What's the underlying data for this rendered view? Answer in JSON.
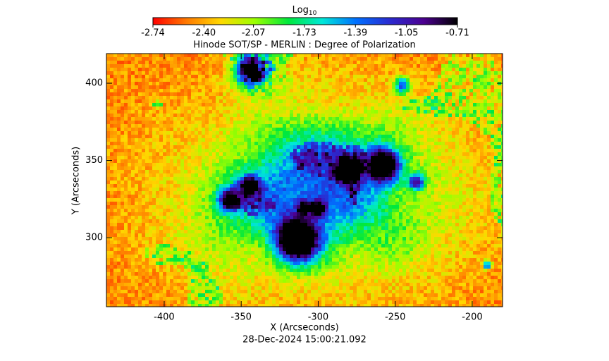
{
  "chart_data": {
    "type": "image",
    "title": "Hinode SOT/SP - MERLIN : Degree of Polarization",
    "x_label": "X (Arcseconds)",
    "y_label": "Y (Arcseconds)",
    "timestamp": "28-Dec-2024 15:00:21.092",
    "xlim": [
      -437.5,
      -180.3
    ],
    "ylim": [
      255.3,
      419.2
    ],
    "xticks": [
      -400,
      -350,
      -300,
      -250,
      -200
    ],
    "yticks": [
      300,
      350,
      400
    ],
    "colorbar": {
      "label": "Log",
      "label_subscript": "10",
      "lim": [
        -2.74,
        -0.71
      ],
      "ticks": [
        -2.74,
        {
          "value": -2.4,
          "label": "-2.40"
        },
        -2.07,
        -1.73,
        -1.39,
        -1.05,
        -0.71
      ]
    },
    "colormap": [
      "#ff0000",
      "#ff7a00",
      "#ffd800",
      "#9cff00",
      "#00e83c",
      "#00e8d8",
      "#0070ff",
      "#2a2ad0",
      "#4c0090",
      "#000000"
    ]
  }
}
